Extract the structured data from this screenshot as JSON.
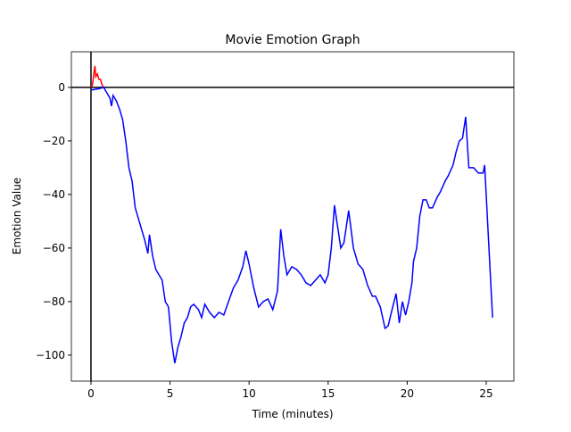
{
  "chart_data": {
    "type": "line",
    "title": "Movie Emotion Graph",
    "x_label": "Time (minutes)",
    "y_label": "Emotion Value",
    "xlim": [
      -1.24,
      26.75
    ],
    "ylim": [
      -109.7,
      13.3
    ],
    "xticks": [
      0,
      5,
      10,
      15,
      20,
      25
    ],
    "yticks": [
      {
        "value": -100,
        "label": "−100"
      },
      {
        "value": -80,
        "label": "−80"
      },
      {
        "value": -60,
        "label": "−60"
      },
      {
        "value": -40,
        "label": "−40"
      },
      {
        "value": -20,
        "label": "−20"
      },
      0
    ],
    "hline": 0,
    "vline": 0,
    "reference_color": "#000000",
    "series": [
      {
        "color": "#ff0000",
        "x": [
          0,
          0.1,
          0.2,
          0.25,
          0.3,
          0.4,
          0.5,
          0.6,
          0.7,
          0.8
        ],
        "values": [
          0,
          1,
          6,
          8,
          4,
          5,
          3,
          3,
          1,
          0
        ]
      },
      {
        "color": "#0000ff",
        "x": [
          0,
          0.5,
          0.8,
          1.0,
          1.2,
          1.3,
          1.4,
          1.6,
          1.8,
          2.0,
          2.2,
          2.4,
          2.6,
          2.8,
          3.0,
          3.2,
          3.4,
          3.6,
          3.7,
          3.9,
          4.1,
          4.3,
          4.5,
          4.7,
          4.9,
          5.1,
          5.3,
          5.5,
          5.7,
          5.9,
          6.1,
          6.3,
          6.5,
          6.8,
          7.0,
          7.2,
          7.5,
          7.8,
          8.1,
          8.4,
          8.7,
          9.0,
          9.3,
          9.6,
          9.8,
          10.0,
          10.3,
          10.6,
          10.9,
          11.2,
          11.5,
          11.8,
          12.0,
          12.2,
          12.4,
          12.7,
          13.0,
          13.3,
          13.6,
          13.9,
          14.2,
          14.5,
          14.8,
          15.0,
          15.2,
          15.4,
          15.6,
          15.8,
          16.0,
          16.3,
          16.6,
          16.9,
          17.2,
          17.5,
          17.8,
          18.0,
          18.3,
          18.6,
          18.8,
          19.0,
          19.3,
          19.5,
          19.7,
          19.9,
          20.1,
          20.3,
          20.4,
          20.6,
          20.8,
          21.0,
          21.2,
          21.4,
          21.6,
          21.9,
          22.1,
          22.4,
          22.6,
          22.9,
          23.1,
          23.3,
          23.5,
          23.7,
          23.9,
          24.2,
          24.5,
          24.8,
          24.9,
          25.4
        ],
        "values": [
          -1,
          -0.5,
          0,
          -2,
          -4,
          -7,
          -3,
          -5,
          -8,
          -12,
          -20,
          -30,
          -35,
          -45,
          -49,
          -53,
          -57,
          -62,
          -55,
          -63,
          -68,
          -70,
          -72,
          -80,
          -82,
          -95,
          -103,
          -97,
          -93,
          -88,
          -86,
          -82,
          -81,
          -83,
          -86,
          -81,
          -84,
          -86,
          -84,
          -85,
          -80,
          -75,
          -72,
          -67,
          -61,
          -66,
          -75,
          -82,
          -80,
          -79,
          -83,
          -76,
          -53,
          -63,
          -70,
          -67,
          -68,
          -70,
          -73,
          -74,
          -72,
          -70,
          -73,
          -70,
          -60,
          -44,
          -52,
          -60,
          -58,
          -46,
          -60,
          -66,
          -68,
          -74,
          -78,
          -78,
          -82,
          -90,
          -89,
          -84,
          -77,
          -88,
          -80,
          -85,
          -80,
          -73,
          -65,
          -60,
          -48,
          -42,
          -42,
          -45,
          -45,
          -41,
          -39,
          -35,
          -33,
          -29,
          -24,
          -20,
          -19,
          -11,
          -30,
          -30,
          -32,
          -32,
          -29,
          -86
        ]
      }
    ]
  }
}
